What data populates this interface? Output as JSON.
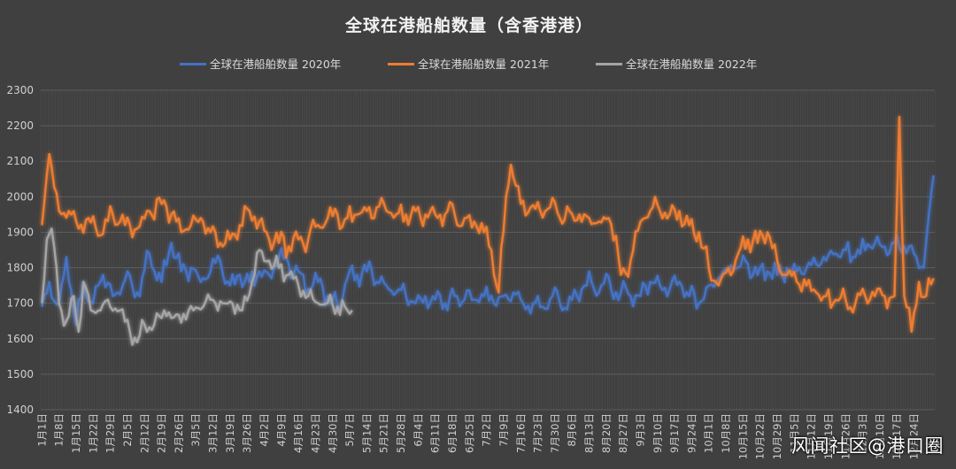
{
  "chart_data": {
    "type": "line",
    "title": "全球在港船舶数量（含香港港）",
    "ylim": [
      1400,
      2300
    ],
    "yticks": [
      "1400",
      "1500",
      "1600",
      "1700",
      "1800",
      "1900",
      "2000",
      "2100",
      "2200",
      "2300"
    ],
    "x_dates": [
      "1月1日",
      "1月8日",
      "1月15日",
      "1月22日",
      "1月29日",
      "2月5日",
      "2月12日",
      "2月19日",
      "2月26日",
      "3月5日",
      "3月12日",
      "3月19日",
      "3月26日",
      "4月2日",
      "4月9日",
      "4月16日",
      "4月23日",
      "4月30日",
      "5月7日",
      "5月14日",
      "5月21日",
      "5月28日",
      "6月4日",
      "6月11日",
      "6月18日",
      "6月25日",
      "7月2日",
      "7月9日",
      "7月16日",
      "7月23日",
      "7月30日",
      "8月6日",
      "8月13日",
      "8月20日",
      "8月27日",
      "9月3日",
      "9月10日",
      "9月17日",
      "9月24日",
      "10月1日",
      "10月8日",
      "10月15日",
      "10月22日",
      "10月29日",
      "11月5日",
      "11月12日",
      "11月19日",
      "11月26日",
      "12月3日",
      "12月10日",
      "12月17日",
      "12月24日"
    ],
    "grid": true,
    "legend_position": "top",
    "series": [
      {
        "name": "全球在港船舶数量 2020年",
        "color": "#4472c4",
        "anchors": [
          [
            1,
            1690
          ],
          [
            4,
            1760
          ],
          [
            8,
            1700
          ],
          [
            11,
            1830
          ],
          [
            15,
            1640
          ],
          [
            18,
            1760
          ],
          [
            22,
            1700
          ],
          [
            26,
            1780
          ],
          [
            30,
            1720
          ],
          [
            36,
            1790
          ],
          [
            40,
            1730
          ],
          [
            45,
            1840
          ],
          [
            50,
            1760
          ],
          [
            54,
            1870
          ],
          [
            58,
            1790
          ],
          [
            62,
            1800
          ],
          [
            66,
            1760
          ],
          [
            70,
            1790
          ],
          [
            74,
            1820
          ],
          [
            78,
            1750
          ],
          [
            82,
            1780
          ],
          [
            86,
            1760
          ],
          [
            90,
            1790
          ],
          [
            94,
            1780
          ],
          [
            98,
            1830
          ],
          [
            102,
            1810
          ],
          [
            106,
            1790
          ],
          [
            110,
            1740
          ],
          [
            114,
            1760
          ],
          [
            118,
            1720
          ],
          [
            122,
            1690
          ],
          [
            126,
            1770
          ],
          [
            130,
            1780
          ],
          [
            134,
            1790
          ],
          [
            138,
            1760
          ],
          [
            142,
            1750
          ],
          [
            146,
            1730
          ],
          [
            150,
            1720
          ],
          [
            154,
            1700
          ],
          [
            158,
            1720
          ],
          [
            162,
            1710
          ],
          [
            166,
            1700
          ],
          [
            170,
            1720
          ],
          [
            174,
            1710
          ],
          [
            178,
            1710
          ],
          [
            182,
            1720
          ],
          [
            186,
            1700
          ],
          [
            190,
            1720
          ],
          [
            194,
            1730
          ],
          [
            198,
            1700
          ],
          [
            202,
            1700
          ],
          [
            206,
            1690
          ],
          [
            210,
            1720
          ],
          [
            214,
            1680
          ],
          [
            218,
            1710
          ],
          [
            222,
            1740
          ],
          [
            226,
            1760
          ],
          [
            230,
            1750
          ],
          [
            234,
            1740
          ],
          [
            238,
            1730
          ],
          [
            242,
            1720
          ],
          [
            246,
            1720
          ],
          [
            250,
            1760
          ],
          [
            254,
            1750
          ],
          [
            258,
            1740
          ],
          [
            262,
            1760
          ],
          [
            266,
            1720
          ],
          [
            270,
            1700
          ],
          [
            274,
            1750
          ],
          [
            278,
            1770
          ],
          [
            282,
            1790
          ],
          [
            286,
            1800
          ],
          [
            290,
            1810
          ],
          [
            294,
            1780
          ],
          [
            298,
            1790
          ],
          [
            302,
            1780
          ],
          [
            306,
            1800
          ],
          [
            310,
            1790
          ],
          [
            314,
            1800
          ],
          [
            318,
            1810
          ],
          [
            322,
            1820
          ],
          [
            326,
            1840
          ],
          [
            330,
            1850
          ],
          [
            334,
            1830
          ],
          [
            338,
            1850
          ],
          [
            342,
            1870
          ],
          [
            346,
            1860
          ],
          [
            350,
            1870
          ],
          [
            354,
            1860
          ],
          [
            358,
            1840
          ],
          [
            362,
            1800
          ],
          [
            366,
            2060
          ]
        ],
        "jitter": 38
      },
      {
        "name": "全球在港船舶数量 2021年",
        "color": "#ed7d31",
        "anchors": [
          [
            1,
            1920
          ],
          [
            4,
            2120
          ],
          [
            8,
            1960
          ],
          [
            12,
            1960
          ],
          [
            16,
            1910
          ],
          [
            20,
            1940
          ],
          [
            24,
            1890
          ],
          [
            30,
            1950
          ],
          [
            35,
            1920
          ],
          [
            40,
            1910
          ],
          [
            45,
            1960
          ],
          [
            50,
            1980
          ],
          [
            54,
            1950
          ],
          [
            58,
            1900
          ],
          [
            62,
            1920
          ],
          [
            66,
            1940
          ],
          [
            70,
            1900
          ],
          [
            74,
            1870
          ],
          [
            78,
            1880
          ],
          [
            82,
            1920
          ],
          [
            86,
            1960
          ],
          [
            90,
            1930
          ],
          [
            94,
            1880
          ],
          [
            98,
            1870
          ],
          [
            102,
            1860
          ],
          [
            106,
            1880
          ],
          [
            110,
            1880
          ],
          [
            114,
            1920
          ],
          [
            118,
            1940
          ],
          [
            122,
            1950
          ],
          [
            126,
            1940
          ],
          [
            130,
            1950
          ],
          [
            134,
            1960
          ],
          [
            138,
            1970
          ],
          [
            142,
            1960
          ],
          [
            146,
            1950
          ],
          [
            150,
            1950
          ],
          [
            154,
            1960
          ],
          [
            158,
            1950
          ],
          [
            162,
            1950
          ],
          [
            166,
            1950
          ],
          [
            170,
            1950
          ],
          [
            174,
            1940
          ],
          [
            178,
            1930
          ],
          [
            182,
            1900
          ],
          [
            185,
            1850
          ],
          [
            188,
            1730
          ],
          [
            191,
            2000
          ],
          [
            193,
            2090
          ],
          [
            197,
            1980
          ],
          [
            201,
            1970
          ],
          [
            205,
            1960
          ],
          [
            209,
            1970
          ],
          [
            213,
            1940
          ],
          [
            217,
            1960
          ],
          [
            221,
            1950
          ],
          [
            225,
            1940
          ],
          [
            229,
            1930
          ],
          [
            233,
            1940
          ],
          [
            236,
            1890
          ],
          [
            238,
            1780
          ],
          [
            242,
            1820
          ],
          [
            246,
            1930
          ],
          [
            250,
            1960
          ],
          [
            254,
            1960
          ],
          [
            258,
            1950
          ],
          [
            262,
            1960
          ],
          [
            266,
            1920
          ],
          [
            270,
            1900
          ],
          [
            274,
            1800
          ],
          [
            278,
            1750
          ],
          [
            282,
            1800
          ],
          [
            286,
            1840
          ],
          [
            290,
            1880
          ],
          [
            294,
            1870
          ],
          [
            298,
            1900
          ],
          [
            302,
            1820
          ],
          [
            306,
            1780
          ],
          [
            310,
            1760
          ],
          [
            314,
            1750
          ],
          [
            318,
            1730
          ],
          [
            322,
            1720
          ],
          [
            326,
            1710
          ],
          [
            330,
            1710
          ],
          [
            334,
            1700
          ],
          [
            338,
            1720
          ],
          [
            342,
            1720
          ],
          [
            346,
            1720
          ],
          [
            350,
            1720
          ],
          [
            352,
            2225
          ],
          [
            354,
            1720
          ],
          [
            357,
            1620
          ],
          [
            360,
            1760
          ],
          [
            363,
            1720
          ],
          [
            366,
            1770
          ]
        ],
        "jitter": 40
      },
      {
        "name": "全球在港船舶数量 2022年",
        "color": "#a5a5a5",
        "anchors": [
          [
            1,
            1700
          ],
          [
            3,
            1880
          ],
          [
            5,
            1910
          ],
          [
            8,
            1700
          ],
          [
            11,
            1650
          ],
          [
            14,
            1720
          ],
          [
            16,
            1620
          ],
          [
            18,
            1760
          ],
          [
            21,
            1680
          ],
          [
            25,
            1680
          ],
          [
            29,
            1690
          ],
          [
            33,
            1680
          ],
          [
            37,
            1620
          ],
          [
            40,
            1590
          ],
          [
            43,
            1640
          ],
          [
            47,
            1640
          ],
          [
            51,
            1680
          ],
          [
            55,
            1660
          ],
          [
            59,
            1670
          ],
          [
            63,
            1680
          ],
          [
            67,
            1690
          ],
          [
            71,
            1710
          ],
          [
            75,
            1700
          ],
          [
            79,
            1700
          ],
          [
            83,
            1680
          ],
          [
            87,
            1760
          ],
          [
            90,
            1850
          ],
          [
            94,
            1820
          ],
          [
            98,
            1800
          ],
          [
            102,
            1780
          ],
          [
            106,
            1750
          ],
          [
            110,
            1720
          ],
          [
            114,
            1700
          ],
          [
            118,
            1700
          ],
          [
            122,
            1690
          ],
          [
            126,
            1680
          ],
          [
            128,
            1680
          ]
        ],
        "jitter": 32
      }
    ]
  },
  "watermark": "风闻社区@港口圈"
}
